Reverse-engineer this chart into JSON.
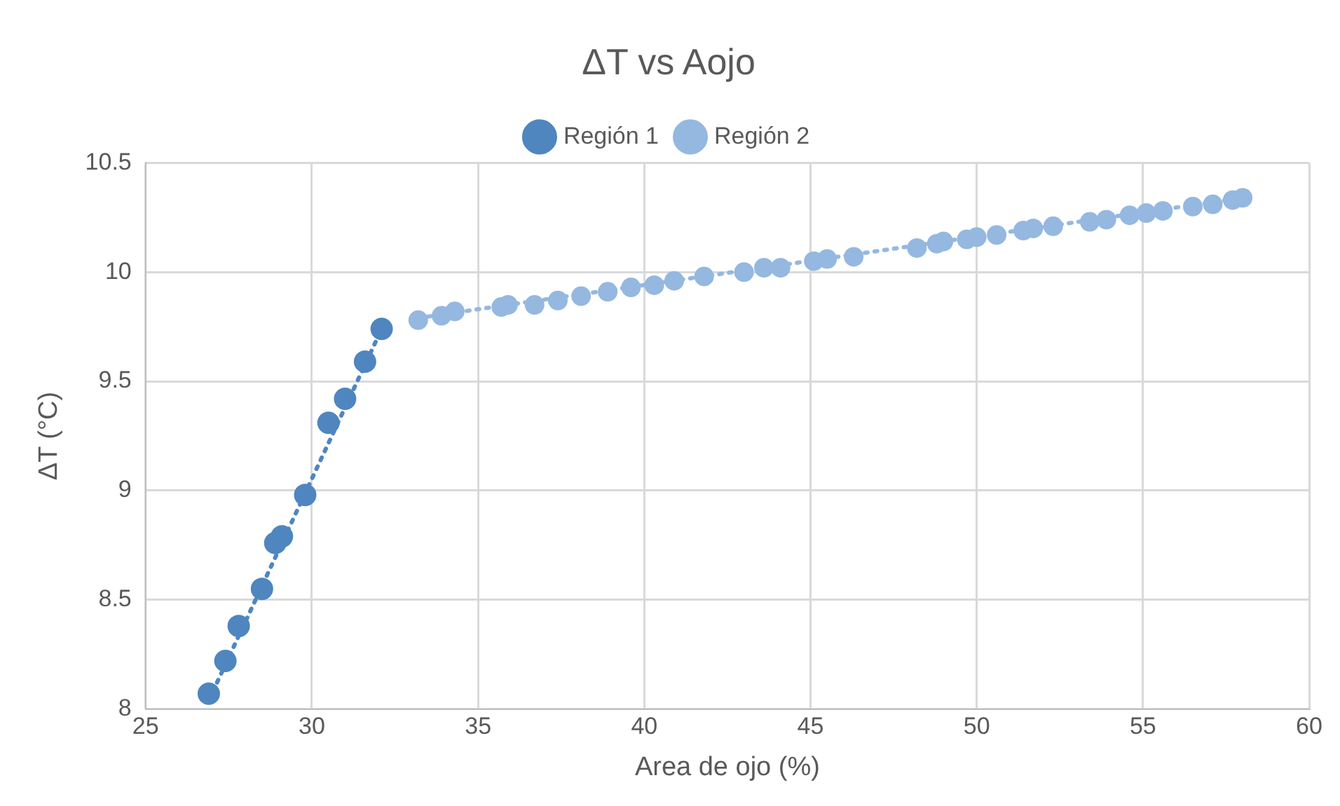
{
  "chart_data": {
    "type": "scatter",
    "title": "ΔT vs Aojo",
    "xlabel": "Area de ojo (%)",
    "ylabel": "ΔT (°C)",
    "xlim": [
      25,
      60
    ],
    "xticks": [
      25,
      30,
      35,
      40,
      45,
      50,
      55,
      60
    ],
    "ylim": [
      8,
      10.5
    ],
    "yticks": [
      8,
      8.5,
      9,
      9.5,
      10,
      10.5
    ],
    "grid": true,
    "legend": "top",
    "marker": "circle",
    "series": [
      {
        "name": "Región 1",
        "color": "#4f86c0",
        "x": [
          26.9,
          27.4,
          27.8,
          28.5,
          28.9,
          29.1,
          29.8,
          30.5,
          31.0,
          31.6,
          32.1
        ],
        "values": [
          8.07,
          8.22,
          8.38,
          8.55,
          8.76,
          8.79,
          8.98,
          9.31,
          9.42,
          9.59,
          9.74
        ]
      },
      {
        "name": "Región 2",
        "color": "#95b8e0",
        "x": [
          33.2,
          33.9,
          34.3,
          35.7,
          35.9,
          36.7,
          37.4,
          38.1,
          38.9,
          39.6,
          40.3,
          40.9,
          41.8,
          43.0,
          43.6,
          44.1,
          45.1,
          45.5,
          46.3,
          48.2,
          48.8,
          49.0,
          49.7,
          50.0,
          50.6,
          51.4,
          51.7,
          52.3,
          53.4,
          53.9,
          54.6,
          55.1,
          55.6,
          56.5,
          57.1,
          57.7,
          58.0
        ],
        "values": [
          9.78,
          9.8,
          9.82,
          9.84,
          9.85,
          9.85,
          9.87,
          9.89,
          9.91,
          9.93,
          9.94,
          9.96,
          9.98,
          10.0,
          10.02,
          10.02,
          10.05,
          10.06,
          10.07,
          10.11,
          10.13,
          10.14,
          10.15,
          10.16,
          10.17,
          10.19,
          10.2,
          10.21,
          10.23,
          10.24,
          10.26,
          10.27,
          10.28,
          10.3,
          10.31,
          10.33,
          10.34
        ]
      },
      {
        "type": "line",
        "color": "#4f86c0",
        "line_style": "dotted",
        "marker": "none",
        "x": [
          26.9,
          32.1
        ],
        "values": [
          8.04,
          9.74
        ]
      },
      {
        "type": "line",
        "color": "#95b8e0",
        "line_style": "dotted",
        "marker": "none",
        "x": [
          33.2,
          58.0
        ],
        "values": [
          9.79,
          10.34
        ]
      }
    ]
  }
}
